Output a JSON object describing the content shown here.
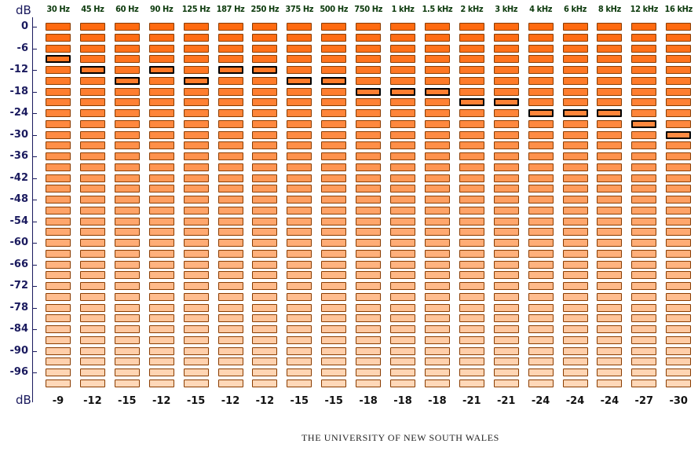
{
  "axis": {
    "unit_top": "dB",
    "unit_bottom": "dB",
    "ticks": [
      "0",
      "-6",
      "-12",
      "-18",
      "-24",
      "-30",
      "-36",
      "-42",
      "-48",
      "-54",
      "-60",
      "-66",
      "-72",
      "-78",
      "-84",
      "-90",
      "-96"
    ]
  },
  "meter": {
    "levels_count": 34,
    "level_step_db": 3,
    "colors": {
      "strong": "#ff6a10",
      "faint": "#ffd8b8",
      "selected_border": "#000000"
    }
  },
  "bands": [
    {
      "freq": "30 Hz",
      "threshold": "-9",
      "level": -9
    },
    {
      "freq": "45 Hz",
      "threshold": "-12",
      "level": -12
    },
    {
      "freq": "60 Hz",
      "threshold": "-15",
      "level": -15
    },
    {
      "freq": "90 Hz",
      "threshold": "-12",
      "level": -12
    },
    {
      "freq": "125 Hz",
      "threshold": "-15",
      "level": -15
    },
    {
      "freq": "187 Hz",
      "threshold": "-12",
      "level": -12
    },
    {
      "freq": "250 Hz",
      "threshold": "-12",
      "level": -12
    },
    {
      "freq": "375 Hz",
      "threshold": "-15",
      "level": -15
    },
    {
      "freq": "500 Hz",
      "threshold": "-15",
      "level": -15
    },
    {
      "freq": "750 Hz",
      "threshold": "-18",
      "level": -18
    },
    {
      "freq": "1 kHz",
      "threshold": "-18",
      "level": -18
    },
    {
      "freq": "1.5 kHz",
      "threshold": "-18",
      "level": -18
    },
    {
      "freq": "2 kHz",
      "threshold": "-21",
      "level": -21
    },
    {
      "freq": "3 kHz",
      "threshold": "-21",
      "level": -21
    },
    {
      "freq": "4 kHz",
      "threshold": "-24",
      "level": -24
    },
    {
      "freq": "6 kHz",
      "threshold": "-24",
      "level": -24
    },
    {
      "freq": "8 kHz",
      "threshold": "-24",
      "level": -24
    },
    {
      "freq": "12 kHz",
      "threshold": "-27",
      "level": -27
    },
    {
      "freq": "16 kHz",
      "threshold": "-30",
      "level": -30
    }
  ],
  "footer": {
    "credit": "THE UNIVERSITY OF NEW SOUTH WALES"
  }
}
